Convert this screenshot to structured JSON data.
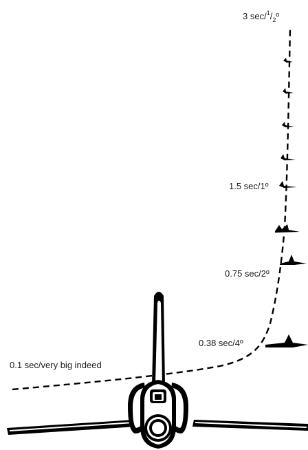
{
  "labels": {
    "l1": "3 sec/",
    "l1_num": "1",
    "l1_sep": "/",
    "l1_den": "2",
    "l1_deg": "º",
    "l2": "1.5 sec/1º",
    "l3": "0.75 sec/2º",
    "l4": "0.38 sec/4º",
    "l5": "0.1 sec/very big indeed"
  },
  "marker_icon": "plane-rear-silhouette",
  "aircraft_icon": "jet-front-view"
}
